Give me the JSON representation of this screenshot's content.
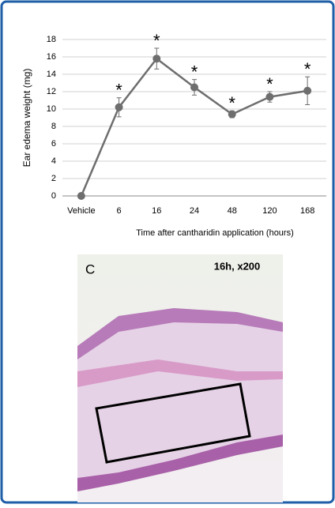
{
  "chart_data": {
    "type": "line",
    "y_label": "Ear edema weight (mg)",
    "x_label": "Time after cantharidin application (hours)",
    "categories": [
      "Vehicle",
      "6",
      "16",
      "24",
      "48",
      "120",
      "168"
    ],
    "values": [
      0,
      10.2,
      15.8,
      12.5,
      9.4,
      11.4,
      12.1
    ],
    "errors": [
      0,
      1.1,
      1.2,
      0.9,
      0.4,
      0.6,
      1.6
    ],
    "annotations": [
      null,
      "*",
      "*",
      "*",
      "*",
      "*",
      "*"
    ],
    "color": "#6e6e6e",
    "ylim": [
      0,
      18
    ],
    "yticks": [
      0,
      2,
      4,
      6,
      8,
      10,
      12,
      14,
      16,
      18
    ],
    "grid": true
  },
  "panel": {
    "label": "C",
    "caption": "16h, x200"
  }
}
